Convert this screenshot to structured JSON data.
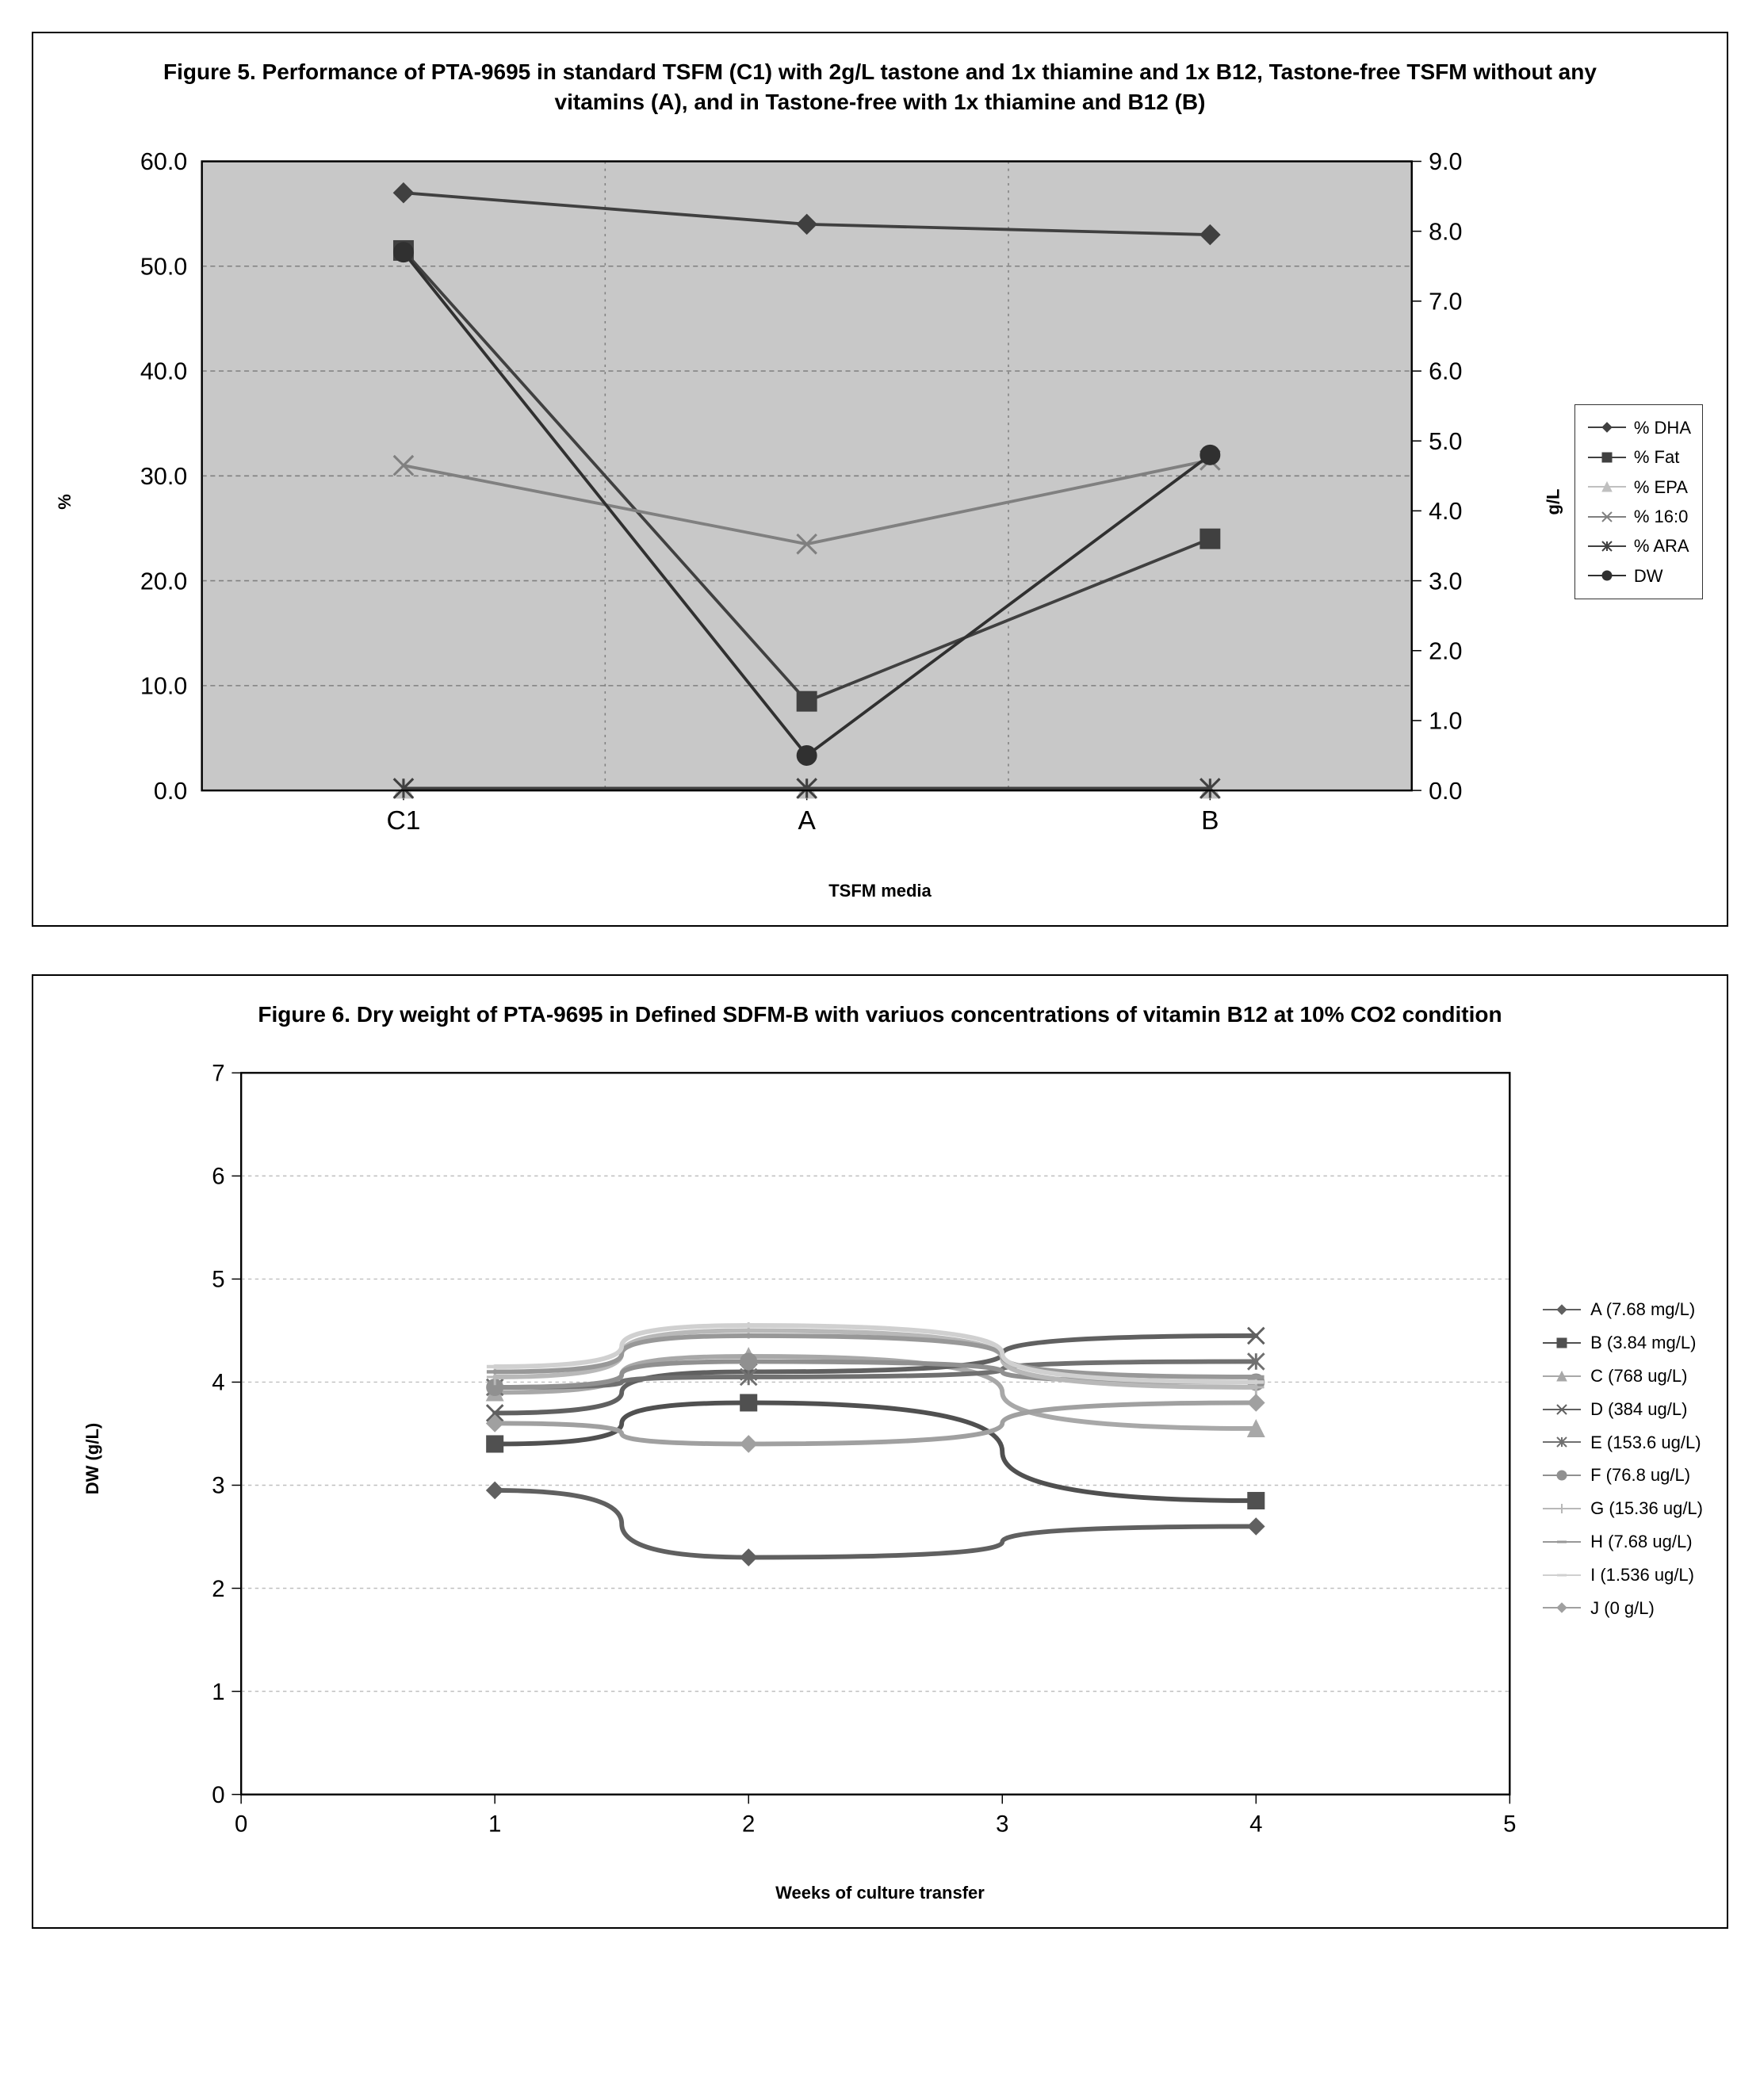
{
  "figure5": {
    "title": "Figure 5.  Performance of PTA-9695 in standard TSFM  (C1) with 2g/L tastone and 1x thiamine and 1x B12, Tastone-free TSFM without any vitamins (A), and in Tastone-free with 1x thiamine and B12 (B)",
    "xlabel": "TSFM media",
    "ylabel_left": "%",
    "ylabel_right": "g/L",
    "categories": [
      "C1",
      "A",
      "B"
    ],
    "left_axis": {
      "min": 0.0,
      "max": 60.0,
      "step": 10.0
    },
    "right_axis": {
      "min": 0.0,
      "max": 9.0,
      "step": 1.0
    },
    "plot_bg": "#c8c8c8",
    "grid_color": "#808080",
    "series": [
      {
        "name": "% DHA",
        "axis": "left",
        "values": [
          57.0,
          54.0,
          53.0
        ],
        "color": "#404040",
        "marker": "diamond"
      },
      {
        "name": "% Fat",
        "axis": "left",
        "values": [
          51.5,
          8.5,
          24.0
        ],
        "color": "#404040",
        "marker": "square"
      },
      {
        "name": "% EPA",
        "axis": "left",
        "values": [
          0.2,
          0.2,
          0.2
        ],
        "color": "#c0c0c0",
        "marker": "triangle"
      },
      {
        "name": "% 16:0",
        "axis": "left",
        "values": [
          31.0,
          23.5,
          31.5
        ],
        "color": "#808080",
        "marker": "x"
      },
      {
        "name": "% ARA",
        "axis": "left",
        "values": [
          0.2,
          0.2,
          0.2
        ],
        "color": "#404040",
        "marker": "asterisk"
      },
      {
        "name": "DW",
        "axis": "right",
        "values": [
          7.7,
          0.5,
          4.8
        ],
        "color": "#303030",
        "marker": "circle"
      }
    ],
    "axis_fontsize": 20,
    "label_fontsize": 22,
    "title_fontsize": 28
  },
  "figure6": {
    "title": "Figure 6. Dry weight of PTA-9695 in Defined SDFM-B with variuos concentrations of vitamin B12 at 10% CO2 condition",
    "xlabel": "Weeks of culture transfer",
    "ylabel": "DW (g/L)",
    "x_axis": {
      "min": 0,
      "max": 5,
      "step": 1
    },
    "y_axis": {
      "min": 0,
      "max": 7,
      "step": 1
    },
    "plot_bg": "#ffffff",
    "grid_color": "#bfbfbf",
    "x_points": [
      1,
      2,
      4
    ],
    "series": [
      {
        "name": "A (7.68 mg/L)",
        "values": [
          2.95,
          2.3,
          2.6
        ],
        "color": "#606060",
        "marker": "diamond"
      },
      {
        "name": "B (3.84 mg/L)",
        "values": [
          3.4,
          3.8,
          2.85
        ],
        "color": "#505050",
        "marker": "square"
      },
      {
        "name": "C (768 ug/L)",
        "values": [
          3.9,
          4.25,
          3.55
        ],
        "color": "#a8a8a8",
        "marker": "triangle"
      },
      {
        "name": "D (384 ug/L)",
        "values": [
          3.7,
          4.1,
          4.45
        ],
        "color": "#606060",
        "marker": "x"
      },
      {
        "name": "E (153.6 ug/L)",
        "values": [
          3.95,
          4.05,
          4.2
        ],
        "color": "#707070",
        "marker": "asterisk"
      },
      {
        "name": "F (76.8 ug/L)",
        "values": [
          3.95,
          4.2,
          4.0
        ],
        "color": "#909090",
        "marker": "circle"
      },
      {
        "name": "G (15.36 ug/L)",
        "values": [
          4.05,
          4.5,
          3.95
        ],
        "color": "#b8b8b8",
        "marker": "plus"
      },
      {
        "name": "H (7.68 ug/L)",
        "values": [
          4.1,
          4.45,
          4.05
        ],
        "color": "#989898",
        "marker": "dash"
      },
      {
        "name": "I (1.536 ug/L)",
        "values": [
          4.15,
          4.55,
          4.0
        ],
        "color": "#d0d0d0",
        "marker": "dash"
      },
      {
        "name": "J (0 g/L)",
        "values": [
          3.6,
          3.4,
          3.8
        ],
        "color": "#a0a0a0",
        "marker": "diamond"
      }
    ],
    "axis_fontsize": 20,
    "label_fontsize": 22,
    "title_fontsize": 28
  }
}
